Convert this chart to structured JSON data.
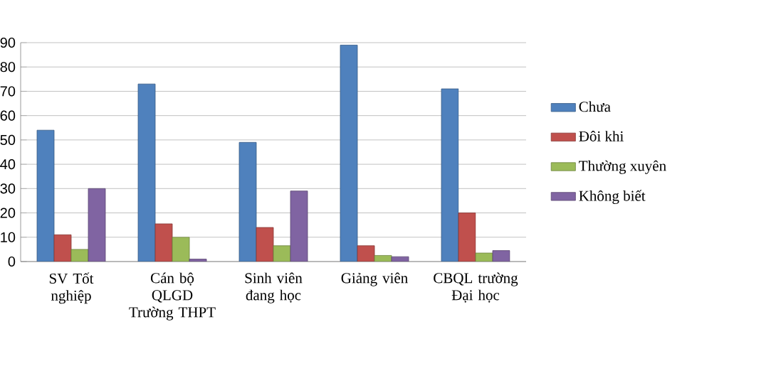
{
  "chart_data": {
    "type": "bar",
    "categories": [
      "SV Tốt nghiệp",
      "Cán bộ QLGD Trường THPT",
      "Sinh viên đang học",
      "Giảng viên",
      "CBQL trường Đại học"
    ],
    "series": [
      {
        "name": "Chưa",
        "color": "#4f81bd",
        "values": [
          54,
          73,
          49,
          89,
          71
        ]
      },
      {
        "name": "Đôi khi",
        "color": "#c0504d",
        "values": [
          11,
          15.5,
          14,
          6.5,
          20
        ]
      },
      {
        "name": "Thường xuyên",
        "color": "#9bbb59",
        "values": [
          5,
          10,
          6.5,
          2.5,
          3.5
        ]
      },
      {
        "name": "Không biết",
        "color": "#8064a2",
        "values": [
          30,
          1,
          29,
          2,
          4.5
        ]
      }
    ],
    "ylim": [
      0,
      90
    ],
    "yticks": [
      0,
      10,
      20,
      30,
      40,
      50,
      60,
      70,
      80,
      90
    ],
    "grid": "y",
    "legend": "right"
  }
}
